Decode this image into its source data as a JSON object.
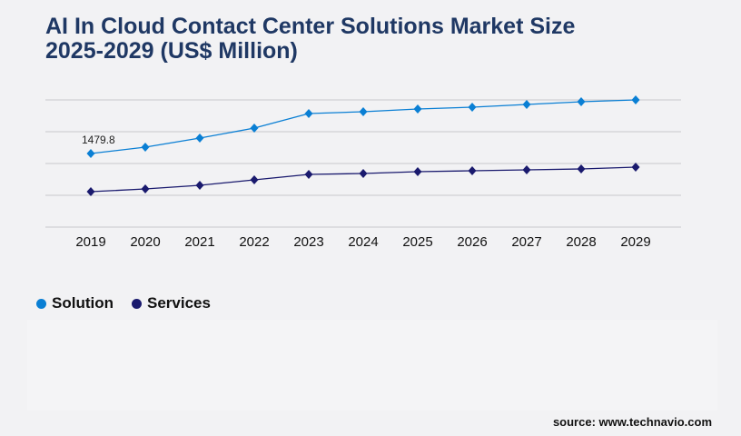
{
  "title_line1": "AI In Cloud Contact Center Solutions Market Size",
  "title_line2": "2025-2029 (US$ Million)",
  "source": "source: www.technavio.com",
  "chart_data": {
    "type": "line",
    "categories": [
      "2019",
      "2020",
      "2021",
      "2022",
      "2023",
      "2024",
      "2025",
      "2026",
      "2027",
      "2028",
      "2029"
    ],
    "ylim": [
      0,
      2558
    ],
    "grid": true,
    "legend": "bottom-left",
    "series": [
      {
        "name": "Solution",
        "color": "#0a7fd4",
        "values": [
          1479.8,
          1608,
          1790,
          1991,
          2284,
          2320,
          2375,
          2412,
          2466,
          2521,
          2558
        ],
        "data_labels": [
          "1479.8",
          "",
          "",
          "",
          "",
          "",
          "",
          "",
          "",
          "",
          ""
        ]
      },
      {
        "name": "Services",
        "color": "#1a1a6e",
        "values": [
          712,
          767,
          840,
          950,
          1060,
          1078,
          1114,
          1133,
          1151,
          1169,
          1206
        ]
      }
    ]
  }
}
